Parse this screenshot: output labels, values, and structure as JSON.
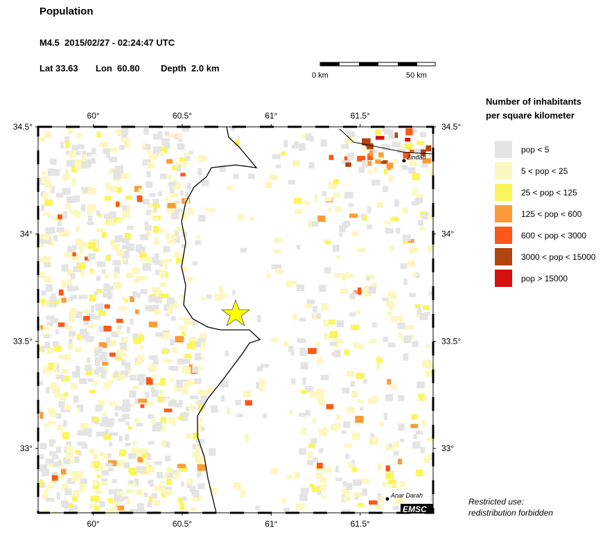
{
  "header": {
    "title": "Population",
    "event": "M4.5  2015/02/27 - 02:24:47 UTC",
    "lat": "Lat 33.63",
    "lon": "Lon  60.80",
    "depth": "Depth  2.0 km"
  },
  "scale_bar": {
    "start": "0 km",
    "end": "50 km"
  },
  "legend": {
    "title_line1": "Number of inhabitants",
    "title_line2": "per square kilometer",
    "items": [
      {
        "label": "pop < 5",
        "color": "#e4e4e4"
      },
      {
        "label": "5 < pop < 25",
        "color": "#fbf7bf"
      },
      {
        "label": "25 < pop < 125",
        "color": "#faf55a"
      },
      {
        "label": "125 < pop < 600",
        "color": "#fb9a37"
      },
      {
        "label": "600 < pop < 3000",
        "color": "#fb5719"
      },
      {
        "label": "3000 < pop < 15000",
        "color": "#b3430f"
      },
      {
        "label": "pop > 15000",
        "color": "#d60f0f"
      }
    ]
  },
  "map": {
    "xlim": [
      59.69,
      61.91
    ],
    "ylim": [
      32.7,
      34.5
    ],
    "xticks": [
      {
        "value": 60,
        "label": "60°"
      },
      {
        "value": 60.5,
        "label": "60.5°"
      },
      {
        "value": 61,
        "label": "61°"
      },
      {
        "value": 61.5,
        "label": "61.5°"
      }
    ],
    "yticks": [
      {
        "value": 33,
        "label": "33°"
      },
      {
        "value": 33.5,
        "label": "33.5°"
      },
      {
        "value": 34,
        "label": "34°"
      },
      {
        "value": 34.5,
        "label": "34.5°"
      }
    ],
    "places": [
      "Zindah",
      "Anar Darah"
    ]
  },
  "badge": "EMSC",
  "notice": [
    "Restricted use:",
    "redistribution forbidden"
  ]
}
